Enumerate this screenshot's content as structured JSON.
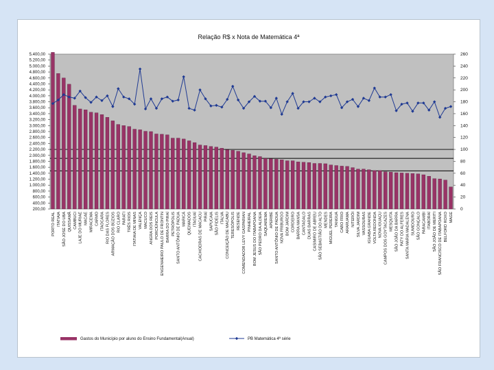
{
  "chart_data": {
    "type": "bar+line",
    "title": "Relação R$ x Nota de Matemática 4ª",
    "y_left": {
      "min": 200,
      "max": 5400,
      "step": 200,
      "tick_labels": [
        "5.400,00",
        "5.200,00",
        "5.000,00",
        "4.800,00",
        "4.600,00",
        "4.400,00",
        "4.200,00",
        "4.000,00",
        "3.800,00",
        "3.600,00",
        "3.400,00",
        "3.200,00",
        "3.000,00",
        "2.800,00",
        "2.600,00",
        "2.400,00",
        "2.200,00",
        "2.000,00",
        "1.800,00",
        "1.600,00",
        "1.400,00",
        "1.200,00",
        "1.000,00",
        "800,00",
        "600,00",
        "400,00",
        "200,00"
      ]
    },
    "y_right": {
      "min": 0,
      "max": 260,
      "step": 20,
      "tick_labels": [
        "260",
        "240",
        "220",
        "200",
        "180",
        "160",
        "140",
        "120",
        "100",
        "80",
        "60",
        "40",
        "20",
        "0"
      ],
      "reference_lines": [
        100,
        85,
        64
      ]
    },
    "categories": [
      "PORTO REAL",
      "ITATIAIA",
      "SÃO JOSÉ DO UBÁ",
      "QUISSAMÃ",
      "CAMBUCI",
      "LAJE DO MURIAÉ",
      "MACAÉ",
      "MIRACEMA",
      "CARMO",
      "ITAOCARA",
      "RIO DAS FLORES",
      "ARMAÇÃO DOS BÚZIOS",
      "RIO CLARO",
      "PARATI",
      "TRÊS RIOS",
      "ITATIAIA DE MINAS",
      "VALENÇA",
      "MACUCO",
      "ANGRA DOS REIS",
      "PORCIÚNCULA",
      "ENGENHEIRO PAULO DE FRONTIN",
      "BARRA DO PIRAÍ",
      "PETRÓPOLIS",
      "SANTO ANTÔNIO DE PÁDUA",
      "MARICÁ",
      "QUEIMADOS",
      "ITAGUAÍ",
      "CACHOEIRAS DE MACACU",
      "PIRAÍ",
      "SAPUCAIA",
      "SÃO FIDÉLIS",
      "ITALVA",
      "CONCEIÇÃO DE MACABU",
      "TERESÓPOLIS",
      "RESENDE",
      "COMENDADOR LEVY GASPARIAN",
      "PINHEIRAL",
      "BOM JESUS DO ITABAPOANA",
      "SÃO PEDRO DA ALDEIA",
      "SAQUAREMA",
      "APERIBÉ",
      "SANTO ANTÔNIO DE PÁDUA",
      "NOVA FRIBURGO",
      "BOM JARDIM",
      "CORDEIRO",
      "BARRA MANSA",
      "CANTAGALO",
      "DUAS BARRAS",
      "CASIMIRO DE ABREU",
      "SÃO SEBASTIÃO DO ALTO",
      "MENDES",
      "MIGUEL PEREIRA",
      "TANGUÁ",
      "CABO FRIO",
      "ARARUAMA",
      "NITERÓI",
      "SILVA JARDIM",
      "VASSOURAS",
      "IGUABA GRANDE",
      "VOLTA REDONDA",
      "NOVA IGUAÇU",
      "CAMPOS DOS GOYTACAZES",
      "MESQUITA",
      "SÃO JOÃO DA BARRA",
      "PATY DO ALFERES",
      "SANTA MARIA MADALENA",
      "SUMIDOURO",
      "SÃO GONÇALO",
      "PARACAMBI",
      "ITABORAÍ",
      "SÃO JOÃO DE MERITI",
      "SÃO FRANCISCO DE ITABAPOANA",
      "BELFORD ROXO",
      "MAGÉ"
    ],
    "series": [
      {
        "name": "Gastos do Município por aluno do Ensino Fundamental(Anual)",
        "type": "bar",
        "axis": "left",
        "color": "#993366",
        "values": [
          5460,
          4750,
          4600,
          4390,
          3680,
          3560,
          3530,
          3450,
          3430,
          3370,
          3280,
          3160,
          3040,
          3000,
          2970,
          2880,
          2860,
          2810,
          2800,
          2720,
          2710,
          2690,
          2580,
          2580,
          2550,
          2490,
          2430,
          2350,
          2330,
          2300,
          2280,
          2240,
          2190,
          2170,
          2140,
          2090,
          2050,
          1990,
          1960,
          1900,
          1890,
          1870,
          1850,
          1820,
          1820,
          1780,
          1770,
          1760,
          1730,
          1730,
          1720,
          1680,
          1660,
          1640,
          1630,
          1590,
          1540,
          1540,
          1520,
          1490,
          1490,
          1450,
          1440,
          1420,
          1410,
          1400,
          1390,
          1380,
          1350,
          1300,
          1220,
          1210,
          1170,
          940
        ]
      },
      {
        "name": "PB Matemática 4ª série",
        "type": "line",
        "axis": "right",
        "color": "#1f3a93",
        "values": [
          177,
          183,
          192,
          188,
          186,
          198,
          187,
          179,
          188,
          182,
          190,
          172,
          202,
          188,
          185,
          176,
          235,
          168,
          185,
          169,
          185,
          188,
          181,
          183,
          222,
          169,
          166,
          200,
          185,
          173,
          174,
          171,
          184,
          206,
          183,
          169,
          180,
          189,
          181,
          181,
          170,
          186,
          159,
          180,
          194,
          169,
          180,
          180,
          186,
          180,
          188,
          190,
          192,
          170,
          180,
          184,
          172,
          186,
          182,
          203,
          188,
          188,
          192,
          165,
          176,
          178,
          164,
          178,
          178,
          166,
          180,
          154,
          169,
          172
        ]
      }
    ],
    "legend": [
      "Gastos do Município por aluno do Ensino Fundamental(Anual)",
      "PB Matemática 4ª série"
    ],
    "legend_position": "bottom"
  }
}
